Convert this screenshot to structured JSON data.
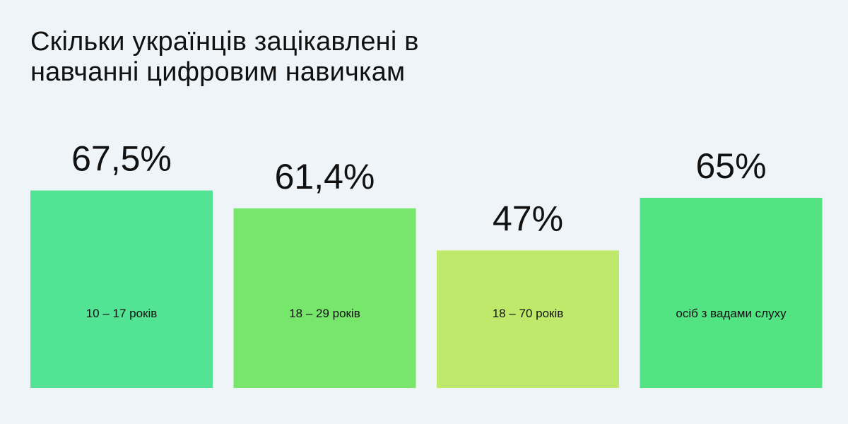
{
  "chart_data": {
    "type": "bar",
    "title_lines": [
      "Скільки українців зацікавлені в",
      "навчанні цифровим навичкам"
    ],
    "categories": [
      "10 – 17 років",
      "18 – 29 років",
      "18 – 70 років",
      "осіб з вадами слуху"
    ],
    "values": [
      67.5,
      61.4,
      47,
      65
    ],
    "value_labels": [
      "67,5%",
      "61,4%",
      "47%",
      "65%"
    ],
    "colors": [
      "#52e494",
      "#76e76a",
      "#bfe96a",
      "#52e383"
    ],
    "ylim": [
      0,
      100
    ],
    "grid": false,
    "legend": "none"
  }
}
